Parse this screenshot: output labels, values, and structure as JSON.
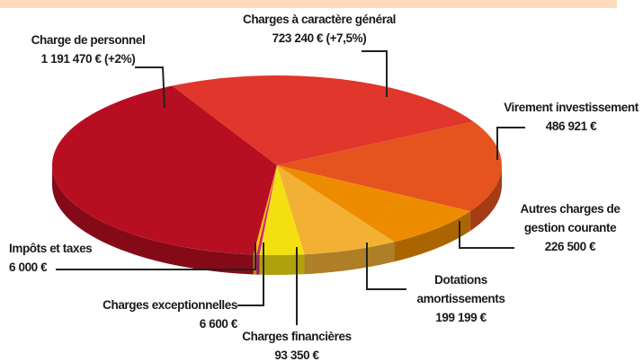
{
  "chart_data": {
    "type": "pie",
    "categories": [
      "Charge de personnel",
      "Charges à caractère général",
      "Virement investissement",
      "Autres charges de gestion courante",
      "Dotations amortissements",
      "Charges financières",
      "Charges exceptionnelles",
      "Impôts et taxes"
    ],
    "values": [
      1191470,
      723240,
      486921,
      226500,
      199199,
      93350,
      6600,
      6000
    ],
    "value_labels": [
      "1 191 470 € (+2%)",
      "723 240 € (+7,5%)",
      "486 921 €",
      "226 500 €",
      "199 199 €",
      "93 350 €",
      "6 600 €",
      "6 000 €"
    ],
    "colors": [
      "#b80e22",
      "#e0362c",
      "#e5531f",
      "#ee8c00",
      "#f2b135",
      "#f4e011",
      "#d4237d",
      "#f2c400"
    ]
  }
}
